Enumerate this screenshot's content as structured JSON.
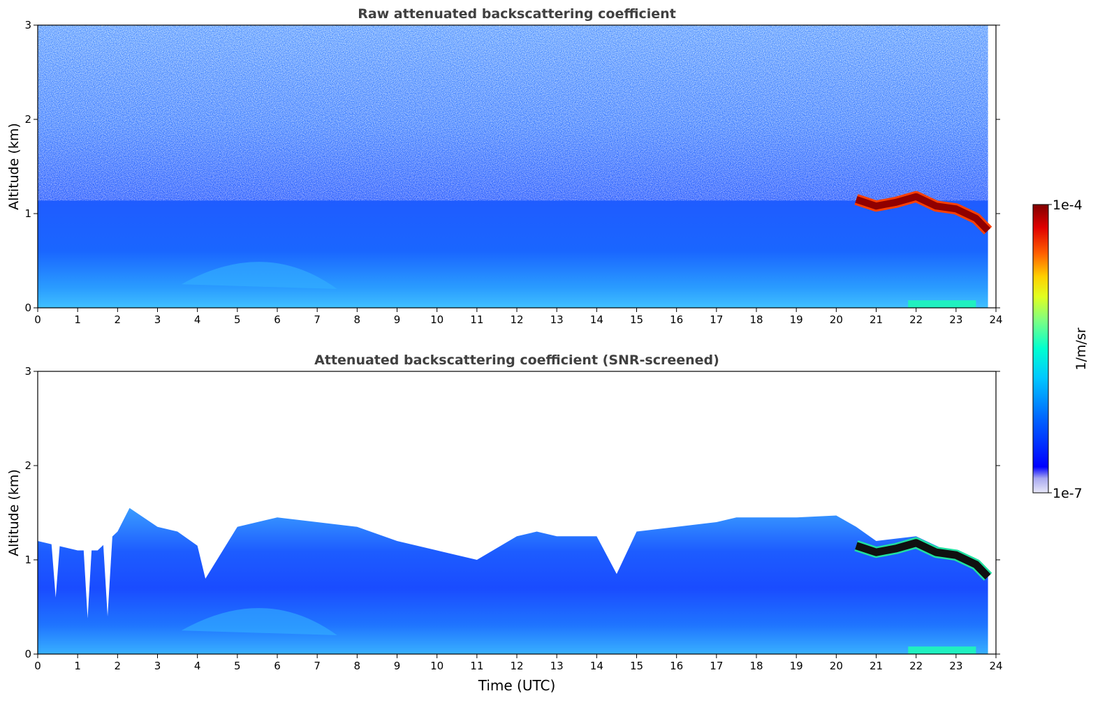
{
  "chart_data": [
    {
      "type": "heatmap",
      "title": "Raw attenuated backscattering coefficient",
      "xlabel": "",
      "ylabel": "Altitude (km)",
      "xlim": [
        0,
        24
      ],
      "ylim": [
        0,
        3
      ],
      "x_ticks": [
        "0",
        "1",
        "2",
        "3",
        "4",
        "5",
        "6",
        "7",
        "8",
        "9",
        "10",
        "11",
        "12",
        "13",
        "14",
        "15",
        "16",
        "17",
        "18",
        "19",
        "20",
        "21",
        "22",
        "23",
        "24"
      ],
      "y_ticks": [
        "0",
        "1",
        "2",
        "3"
      ],
      "data_extent_hours": [
        0,
        23.8
      ],
      "screened": false,
      "cloud_layer": {
        "time_utc": [
          20.5,
          21.0,
          21.5,
          22.0,
          22.5,
          23.0,
          23.5,
          23.8
        ],
        "altitude_km": [
          1.15,
          1.08,
          1.12,
          1.18,
          1.08,
          1.05,
          0.95,
          0.82
        ]
      }
    },
    {
      "type": "heatmap",
      "title": "Attenuated backscattering coefficient (SNR-screened)",
      "xlabel": "Time (UTC)",
      "ylabel": "Altitude (km)",
      "xlim": [
        0,
        24
      ],
      "ylim": [
        0,
        3
      ],
      "x_ticks": [
        "0",
        "1",
        "2",
        "3",
        "4",
        "5",
        "6",
        "7",
        "8",
        "9",
        "10",
        "11",
        "12",
        "13",
        "14",
        "15",
        "16",
        "17",
        "18",
        "19",
        "20",
        "21",
        "22",
        "23",
        "24"
      ],
      "y_ticks": [
        "0",
        "1",
        "2",
        "3"
      ],
      "data_extent_hours": [
        0,
        23.8
      ],
      "screened": true,
      "screened_top_km": {
        "time_utc": [
          0,
          0.5,
          1,
          1.5,
          2,
          2.3,
          3,
          3.5,
          4,
          4.2,
          5,
          6,
          7,
          8,
          9,
          10,
          11,
          12,
          12.5,
          13,
          14,
          14.5,
          15,
          16,
          17,
          17.5,
          18,
          19,
          20,
          20.5,
          21,
          22,
          23,
          23.8
        ],
        "altitude_km": [
          1.2,
          1.15,
          1.1,
          1.1,
          1.3,
          1.55,
          1.35,
          1.3,
          1.15,
          0.8,
          1.35,
          1.45,
          1.4,
          1.35,
          1.2,
          1.1,
          1.0,
          1.25,
          1.3,
          1.25,
          1.25,
          0.85,
          1.3,
          1.35,
          1.4,
          1.45,
          1.45,
          1.45,
          1.47,
          1.35,
          1.2,
          1.25,
          1.05,
          0.9
        ]
      },
      "cloud_layer": {
        "time_utc": [
          20.5,
          21.0,
          21.5,
          22.0,
          22.5,
          23.0,
          23.5,
          23.8
        ],
        "altitude_km": [
          1.15,
          1.08,
          1.12,
          1.18,
          1.08,
          1.05,
          0.95,
          0.82
        ]
      }
    }
  ],
  "colorbar": {
    "label": "1/m/sr",
    "max_label": "1e-4",
    "min_label": "1e-7",
    "colormap": "jet",
    "colors": [
      "#e8e8f8",
      "#c8c8f0",
      "#0000ff",
      "#0080ff",
      "#00ffff",
      "#80ff80",
      "#ffff00",
      "#ff8000",
      "#ff0000",
      "#800000"
    ]
  }
}
